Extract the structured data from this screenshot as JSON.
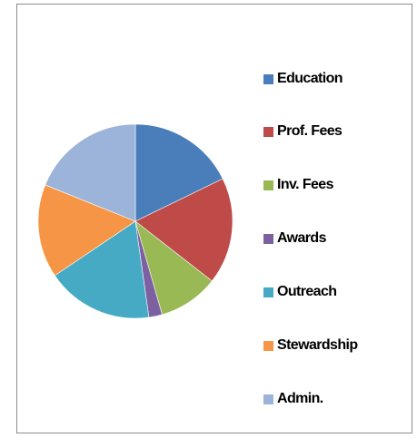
{
  "chart_data": {
    "type": "pie",
    "title": "",
    "legend_position": "right",
    "start_angle": "12 o'clock, clockwise",
    "slices": [
      {
        "label": "Education",
        "value": 16,
        "color": "#4a7ebb"
      },
      {
        "label": "Prof. Fees",
        "value": 16,
        "color": "#be4b48"
      },
      {
        "label": "Inv. Fees",
        "value": 9,
        "color": "#98b954"
      },
      {
        "label": "Awards",
        "value": 2,
        "color": "#7d60a0"
      },
      {
        "label": "Outreach",
        "value": 16,
        "color": "#46aac5"
      },
      {
        "label": "Stewardship",
        "value": 14,
        "color": "#f69545"
      },
      {
        "label": "Admin.",
        "value": 17,
        "color": "#9cb4d9"
      }
    ]
  }
}
